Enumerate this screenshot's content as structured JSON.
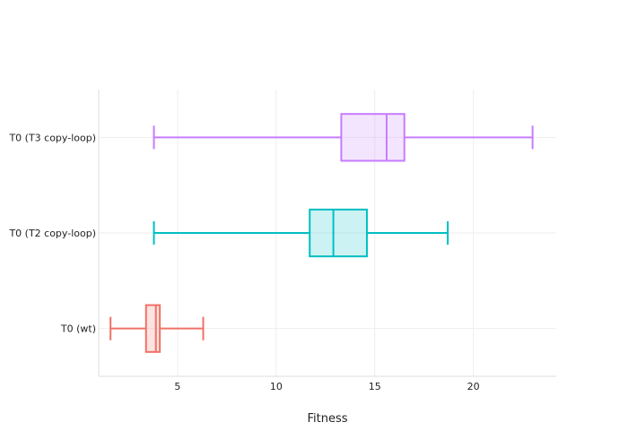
{
  "chart_data": {
    "type": "box",
    "orientation": "horizontal",
    "xlabel": "Fitness",
    "xlim": [
      1,
      24.2
    ],
    "xticks": [
      5,
      10,
      15,
      20
    ],
    "grid": true,
    "categories": [
      "T0 (wt)",
      "T0 (T2 copy-loop)",
      "T0 (T3 copy-loop)"
    ],
    "series": [
      {
        "category": "T0 (wt)",
        "min": 1.6,
        "q1": 3.4,
        "median": 3.9,
        "q3": 4.1,
        "max": 6.3,
        "color": "#f07167"
      },
      {
        "category": "T0 (T2 copy-loop)",
        "min": 3.8,
        "q1": 11.7,
        "median": 12.9,
        "q3": 14.6,
        "max": 18.7,
        "color": "#00bfc4"
      },
      {
        "category": "T0 (T3 copy-loop)",
        "min": 3.8,
        "q1": 13.3,
        "median": 15.6,
        "q3": 16.5,
        "max": 23.0,
        "color": "#c77cff"
      }
    ]
  }
}
